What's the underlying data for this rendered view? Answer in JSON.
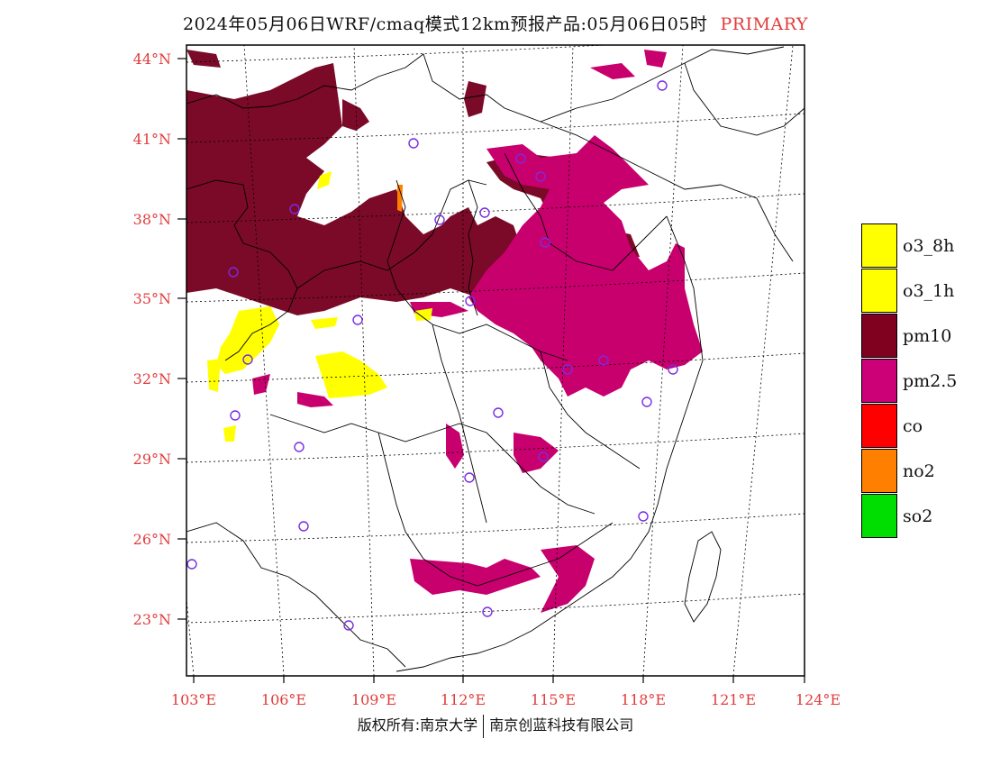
{
  "title": {
    "main": "2024年05月06日WRF/cmaq模式12km预报产品:05月06日05时",
    "tag": "PRIMARY"
  },
  "footer": {
    "left": "版权所有:南京大学",
    "right": "南京创蓝科技有限公司"
  },
  "map": {
    "lat_labels": [
      "44°N",
      "41°N",
      "38°N",
      "35°N",
      "32°N",
      "29°N",
      "26°N",
      "23°N"
    ],
    "lon_labels": [
      "103°E",
      "106°E",
      "109°E",
      "112°E",
      "115°E",
      "118°E",
      "121°E",
      "124°E"
    ],
    "lat_range": [
      21,
      44.5
    ],
    "lon_range": [
      102.8,
      124
    ]
  },
  "legend": {
    "items": [
      {
        "label": "o3_8h",
        "color": "#ffff00"
      },
      {
        "label": "o3_1h",
        "color": "#ffff00"
      },
      {
        "label": "pm10",
        "color": "#800020"
      },
      {
        "label": "pm2.5",
        "color": "#cc0077"
      },
      {
        "label": "co",
        "color": "#ff0000"
      },
      {
        "label": "no2",
        "color": "#ff8000"
      },
      {
        "label": "so2",
        "color": "#00dd00"
      }
    ]
  },
  "colors": {
    "pm10": "#7a0a28",
    "pm25": "#c8006e",
    "o3": "#ffff00",
    "no2": "#ff8000",
    "tick": "#e23b3b",
    "station": "#7a2be2"
  }
}
